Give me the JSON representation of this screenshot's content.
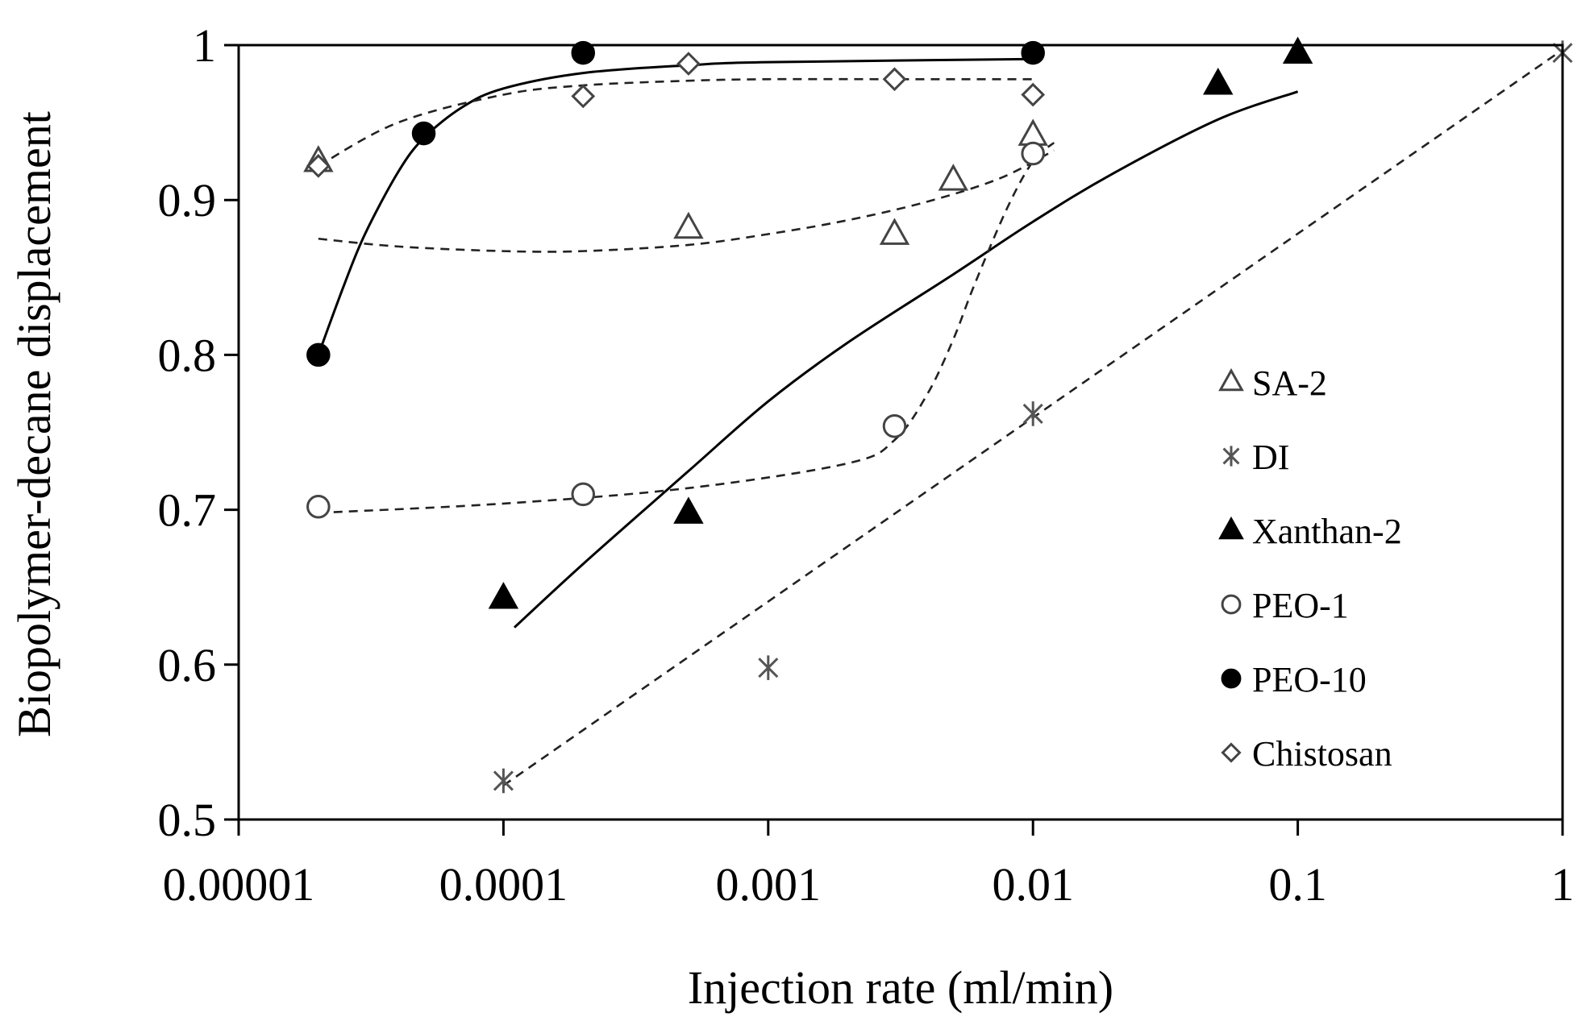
{
  "chart_data": {
    "type": "scatter",
    "title": "",
    "xlabel": "Injection rate (ml/min)",
    "ylabel": "Biopolymer-decane displacement",
    "xscale": "log",
    "xlim": [
      1e-05,
      1
    ],
    "ylim": [
      0.5,
      1
    ],
    "grid": false,
    "legend_position": "right-center",
    "x_tick_values": [
      1e-05,
      0.0001,
      0.001,
      0.01,
      0.1,
      1
    ],
    "x_tick_labels": [
      "0.00001",
      "0.0001",
      "0.001",
      "0.01",
      "0.1",
      "1"
    ],
    "y_tick_values": [
      0.5,
      0.6,
      0.7,
      0.8,
      0.9,
      1
    ],
    "y_tick_labels": [
      "0.5",
      "0.6",
      "0.7",
      "0.8",
      "0.9",
      "1"
    ],
    "series": [
      {
        "name": "SA-2",
        "marker": "triangle-open",
        "color": "#444444",
        "x": [
          2e-05,
          0.0005,
          0.003,
          0.005,
          0.01
        ],
        "y": [
          0.925,
          0.882,
          0.878,
          0.913,
          0.942
        ],
        "trend": {
          "style": "dashed",
          "color": "#222222",
          "x": [
            2e-05,
            4e-05,
            0.0001,
            0.0002,
            0.0005,
            0.001,
            0.002,
            0.004,
            0.0075,
            0.012
          ],
          "y": [
            0.875,
            0.87,
            0.867,
            0.867,
            0.871,
            0.878,
            0.887,
            0.899,
            0.914,
            0.932
          ]
        }
      },
      {
        "name": "DI",
        "marker": "asterisk",
        "color": "#555555",
        "x": [
          0.0001,
          0.001,
          0.01,
          1
        ],
        "y": [
          0.525,
          0.598,
          0.762,
          0.995
        ],
        "trend": {
          "style": "dashed",
          "color": "#222222",
          "x": [
            0.0001,
            1
          ],
          "y": [
            0.522,
            0.997
          ]
        }
      },
      {
        "name": "Xanthan-2",
        "marker": "triangle-filled",
        "color": "#000000",
        "x": [
          0.0001,
          0.0005,
          0.05,
          0.1
        ],
        "y": [
          0.643,
          0.698,
          0.975,
          0.995
        ],
        "trend": {
          "style": "solid",
          "color": "#000000",
          "x": [
            0.00011,
            0.0002,
            0.0005,
            0.001,
            0.002,
            0.005,
            0.01,
            0.02,
            0.05,
            0.1
          ],
          "y": [
            0.624,
            0.665,
            0.725,
            0.77,
            0.808,
            0.852,
            0.886,
            0.917,
            0.952,
            0.97
          ]
        }
      },
      {
        "name": "PEO-1",
        "marker": "circle-open",
        "color": "#444444",
        "x": [
          2e-05,
          0.0002,
          0.003,
          0.01
        ],
        "y": [
          0.702,
          0.71,
          0.754,
          0.93
        ],
        "trend": {
          "style": "dashed",
          "color": "#222222",
          "x": [
            2e-05,
            0.0001,
            0.0005,
            0.002,
            0.003,
            0.004,
            0.005,
            0.006,
            0.008,
            0.01,
            0.012
          ],
          "y": [
            0.698,
            0.704,
            0.714,
            0.73,
            0.745,
            0.775,
            0.81,
            0.845,
            0.895,
            0.925,
            0.937
          ]
        }
      },
      {
        "name": "PEO-10",
        "marker": "circle-filled",
        "color": "#000000",
        "x": [
          2e-05,
          5e-05,
          0.0002,
          0.01
        ],
        "y": [
          0.8,
          0.943,
          0.995,
          0.995
        ],
        "trend": {
          "style": "solid",
          "color": "#000000",
          "x": [
            2e-05,
            2.5e-05,
            3e-05,
            4e-05,
            5e-05,
            7e-05,
            0.0001,
            0.0002,
            0.0005,
            0.001,
            0.01
          ],
          "y": [
            0.8,
            0.845,
            0.878,
            0.918,
            0.94,
            0.96,
            0.972,
            0.982,
            0.987,
            0.989,
            0.991
          ]
        }
      },
      {
        "name": "Chistosan",
        "marker": "diamond-open",
        "color": "#444444",
        "x": [
          2e-05,
          0.0002,
          0.0005,
          0.003,
          0.01
        ],
        "y": [
          0.922,
          0.967,
          0.988,
          0.978,
          0.968
        ],
        "trend": {
          "style": "dashed",
          "color": "#222222",
          "x": [
            2e-05,
            4e-05,
            0.0001,
            0.0002,
            0.0005,
            0.001,
            0.003,
            0.01
          ],
          "y": [
            0.922,
            0.95,
            0.968,
            0.974,
            0.977,
            0.978,
            0.978,
            0.978
          ]
        }
      }
    ]
  }
}
